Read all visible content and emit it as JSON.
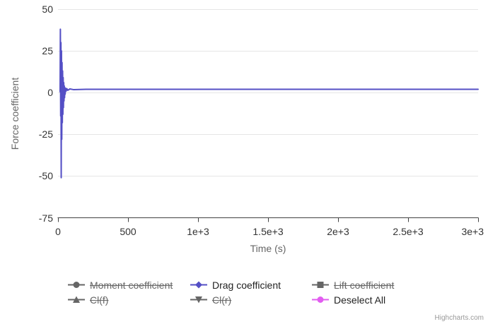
{
  "chart_data": {
    "type": "line",
    "title": "",
    "xlabel": "Time (s)",
    "ylabel": "Force coefficient",
    "xlim": [
      0,
      3000
    ],
    "ylim": [
      -75,
      50
    ],
    "grid": "horizontal-only",
    "legend_position": "bottom",
    "xticks": {
      "values": [
        0,
        500,
        1000,
        1500,
        2000,
        2500,
        3000
      ],
      "labels": [
        "0",
        "500",
        "1e+3",
        "1.5e+3",
        "2e+3",
        "2.5e+3",
        "3e+3"
      ]
    },
    "yticks": {
      "values": [
        50,
        25,
        0,
        -25,
        -50,
        -75
      ],
      "labels": [
        "50",
        "25",
        "0",
        "-25",
        "-50",
        "-75"
      ]
    },
    "series": [
      {
        "name": "Drag coefficient",
        "color": "#544fc5",
        "line_width": 2,
        "points": [
          [
            15,
            0.5
          ],
          [
            17,
            38
          ],
          [
            19,
            -14
          ],
          [
            21,
            30
          ],
          [
            23,
            -51
          ],
          [
            25,
            25
          ],
          [
            27,
            -28
          ],
          [
            29,
            18
          ],
          [
            31,
            -18
          ],
          [
            33,
            13
          ],
          [
            35,
            -13
          ],
          [
            37,
            9
          ],
          [
            39,
            -9
          ],
          [
            41,
            6
          ],
          [
            43,
            -5
          ],
          [
            45,
            4
          ],
          [
            47,
            -3
          ],
          [
            49,
            3
          ],
          [
            51,
            -1
          ],
          [
            54,
            2.6
          ],
          [
            58,
            0.9
          ],
          [
            63,
            2.4
          ],
          [
            70,
            1.4
          ],
          [
            85,
            2.2
          ],
          [
            110,
            1.8
          ],
          [
            200,
            2
          ],
          [
            500,
            2
          ],
          [
            1000,
            2
          ],
          [
            1500,
            2
          ],
          [
            2000,
            2
          ],
          [
            2500,
            2
          ],
          [
            3000,
            2
          ]
        ]
      }
    ],
    "annotations": {
      "peak_value": 38,
      "trough_value": -51,
      "steady_state_value": 2
    }
  },
  "colors": {
    "grid_line": "#e6e6e6",
    "axis_line": "#424242",
    "tick_label": "#333333",
    "axis_title": "#666666",
    "legend_active_text": "#222222",
    "legend_disabled": "#666666",
    "accent_blue": "#544fc5",
    "accent_magenta": "#e25df0"
  },
  "legend": {
    "items": [
      {
        "label": "Moment coefficient",
        "marker": "circle",
        "color": "#666666",
        "disabled": true
      },
      {
        "label": "Drag coefficient",
        "marker": "diamond",
        "color": "#544fc5",
        "disabled": false
      },
      {
        "label": "Lift coefficient",
        "marker": "square",
        "color": "#666666",
        "disabled": true
      },
      {
        "label": "Cl(f)",
        "marker": "triangle",
        "color": "#666666",
        "disabled": true
      },
      {
        "label": "Cl(r)",
        "marker": "triangle-down",
        "color": "#666666",
        "disabled": true
      },
      {
        "label": "Deselect All",
        "marker": "circle",
        "color": "#e25df0",
        "disabled": false
      }
    ]
  },
  "credits": {
    "label": "Highcharts.com"
  }
}
